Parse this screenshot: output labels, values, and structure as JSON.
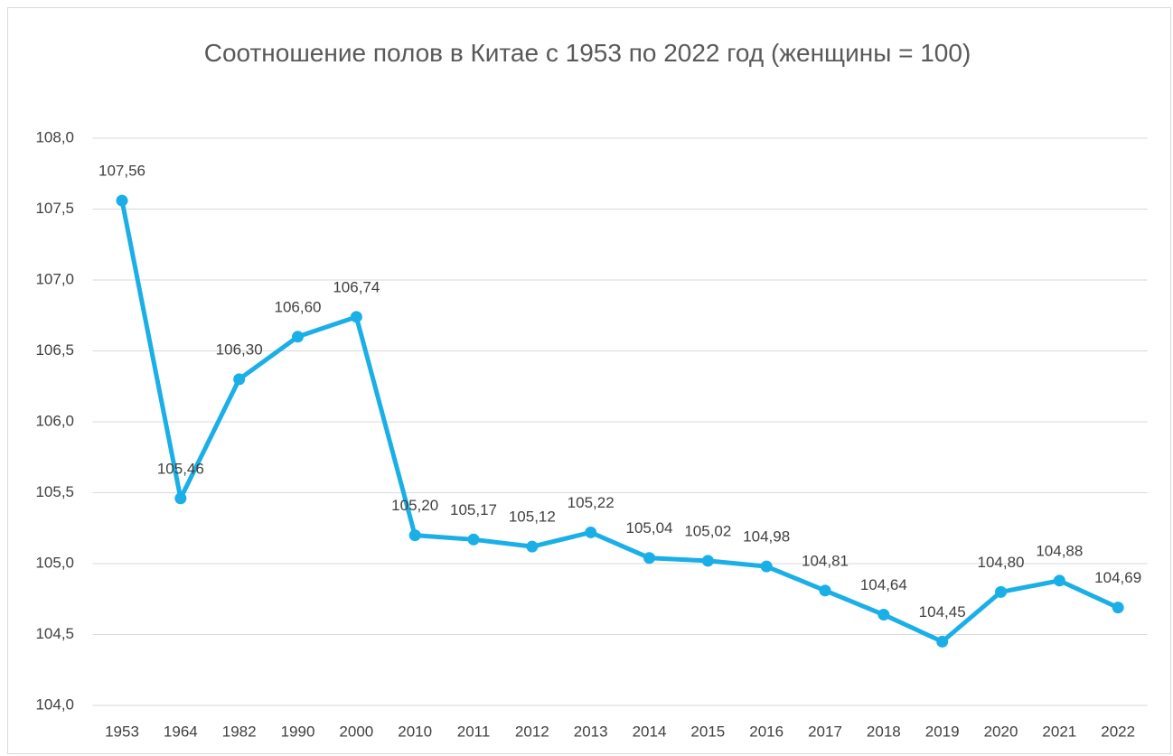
{
  "chart_data": {
    "type": "line",
    "title": "Соотношение полов в Китае с 1953 по 2022 год (женщины = 100)",
    "categories": [
      "1953",
      "1964",
      "1982",
      "1990",
      "2000",
      "2010",
      "2011",
      "2012",
      "2013",
      "2014",
      "2015",
      "2016",
      "2017",
      "2018",
      "2019",
      "2020",
      "2021",
      "2022"
    ],
    "values": [
      107.56,
      105.46,
      106.3,
      106.6,
      106.74,
      105.2,
      105.17,
      105.12,
      105.22,
      105.04,
      105.02,
      104.98,
      104.81,
      104.64,
      104.45,
      104.8,
      104.88,
      104.69
    ],
    "value_labels": [
      "107,56",
      "105,46",
      "106,30",
      "106,60",
      "106,74",
      "105,20",
      "105,17",
      "105,12",
      "105,22",
      "105,04",
      "105,02",
      "104,98",
      "104,81",
      "104,64",
      "104,45",
      "104,80",
      "104,88",
      "104,69"
    ],
    "color": "#1aafe6",
    "ylim": [
      104,
      108
    ],
    "yticks": [
      {
        "value": 104,
        "label": "104,0"
      },
      {
        "value": 104.5,
        "label": "104,5"
      },
      {
        "value": 105,
        "label": "105,0"
      },
      {
        "value": 105.5,
        "label": "105,5"
      },
      {
        "value": 106,
        "label": "106,0"
      },
      {
        "value": 106.5,
        "label": "106,5"
      },
      {
        "value": 107,
        "label": "107,0"
      },
      {
        "value": 107.5,
        "label": "107,5"
      },
      {
        "value": 108,
        "label": "108,0"
      }
    ],
    "grid": true
  }
}
